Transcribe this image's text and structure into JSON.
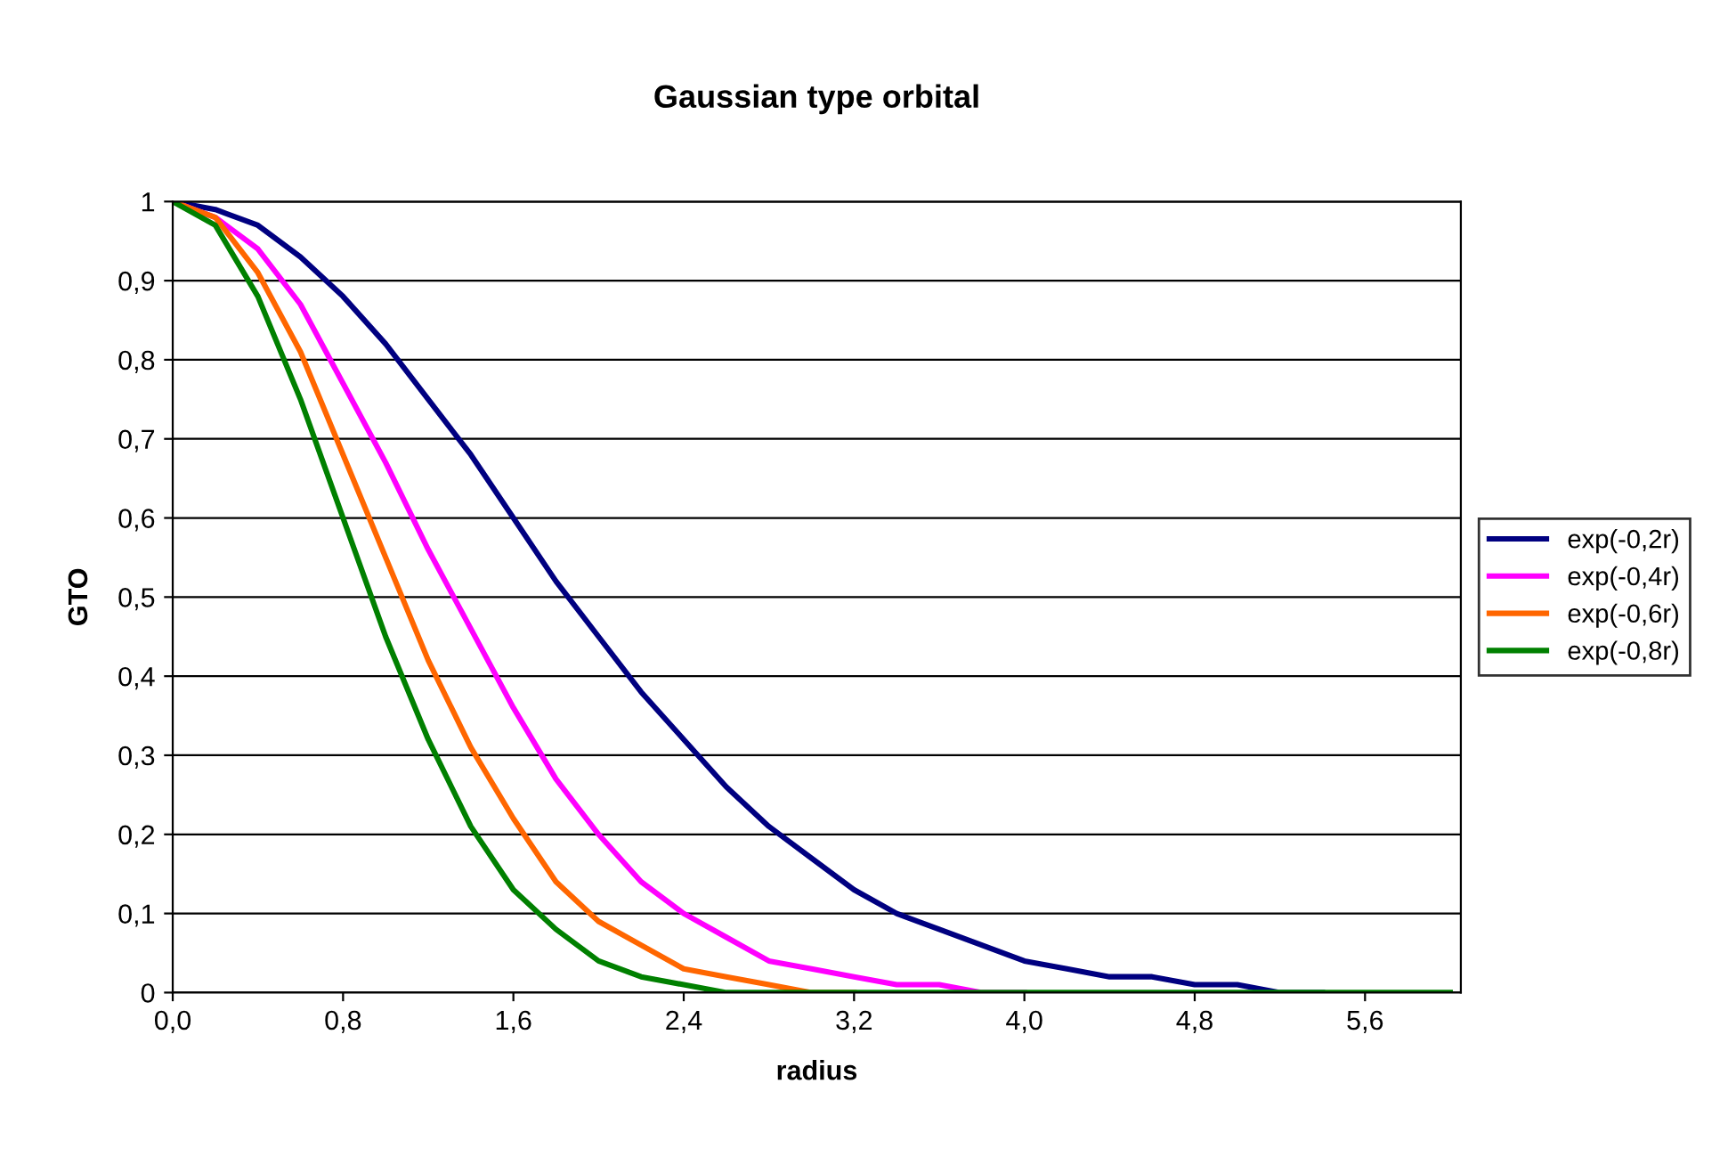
{
  "chart_data": {
    "type": "line",
    "title": "Gaussian type orbital",
    "xlabel": "radius",
    "ylabel": "GTO",
    "categories": [
      "0,0",
      null,
      null,
      null,
      "0,8",
      null,
      null,
      null,
      "1,6",
      null,
      null,
      null,
      "2,4",
      null,
      null,
      null,
      "3,2",
      null,
      null,
      null,
      "4,0",
      null,
      null,
      null,
      "4,8",
      null,
      null,
      null,
      "5,6",
      null,
      null
    ],
    "series": [
      {
        "name": "exp(-0,2r)",
        "color": "#000080",
        "values": [
          1,
          0.99,
          0.97,
          0.93,
          0.88,
          0.82,
          0.75,
          0.68,
          0.6,
          0.52,
          0.45,
          0.38,
          0.32,
          0.26,
          0.21,
          0.17,
          0.13,
          0.1,
          0.08,
          0.06,
          0.04,
          0.03,
          0.02,
          0.02,
          0.01,
          0.01,
          0,
          0,
          null,
          null,
          null
        ]
      },
      {
        "name": "exp(-0,4r)",
        "color": "#ff00ff",
        "values": [
          1,
          0.98,
          0.94,
          0.87,
          0.77,
          0.67,
          0.56,
          0.46,
          0.36,
          0.27,
          0.2,
          0.14,
          0.1,
          0.07,
          0.04,
          0.03,
          0.02,
          0.01,
          0.01,
          0,
          0,
          null,
          null,
          null,
          null,
          null,
          null,
          null,
          null,
          null,
          null
        ]
      },
      {
        "name": "exp(-0,6r)",
        "color": "#ff6600",
        "values": [
          1,
          0.98,
          0.91,
          0.81,
          0.68,
          0.55,
          0.42,
          0.31,
          0.22,
          0.14,
          0.09,
          0.06,
          0.03,
          0.02,
          0.01,
          0,
          0,
          null,
          null,
          null,
          null,
          null,
          null,
          null,
          null,
          null,
          null,
          null,
          null,
          null,
          null
        ]
      },
      {
        "name": "exp(-0,8r)",
        "color": "#008000",
        "values": [
          1,
          0.97,
          0.88,
          0.75,
          0.6,
          0.45,
          0.32,
          0.21,
          0.13,
          0.08,
          0.04,
          0.02,
          0.01,
          0,
          0,
          0,
          0,
          0,
          0,
          0,
          0,
          0,
          0,
          0,
          0,
          0,
          0,
          0,
          0,
          0,
          0
        ]
      }
    ],
    "ylim": [
      0,
      1
    ],
    "yticks": [
      0,
      {
        "value": 0.1,
        "label": "0,1"
      },
      {
        "value": 0.2,
        "label": "0,2"
      },
      {
        "value": 0.3,
        "label": "0,3"
      },
      {
        "value": 0.4,
        "label": "0,4"
      },
      {
        "value": 0.5,
        "label": "0,5"
      },
      {
        "value": 0.6,
        "label": "0,6"
      },
      {
        "value": 0.7,
        "label": "0,7"
      },
      {
        "value": 0.8,
        "label": "0,8"
      },
      {
        "value": 0.9,
        "label": "0,9"
      },
      1
    ],
    "grid": "y",
    "legend": "right",
    "marker": "none",
    "line_style": "solid"
  }
}
